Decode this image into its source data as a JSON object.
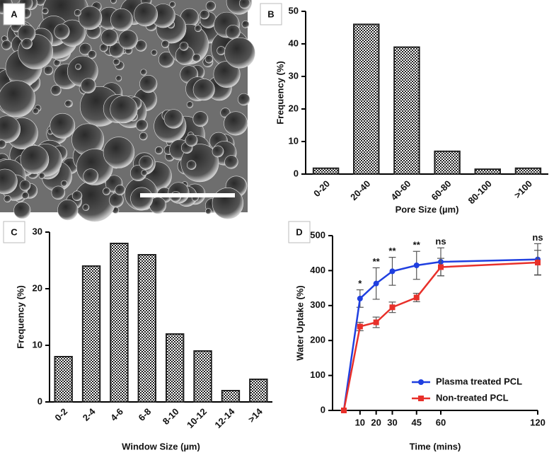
{
  "image_panel": {
    "label": "A"
  },
  "chart_data": [
    {
      "type": "bar",
      "panel_label": "B",
      "x_label": "Pore Size (µm)",
      "y_label": "Frequency (%)",
      "categories": [
        "0-20",
        "20-40",
        "40-60",
        "60-80",
        "80-100",
        ">100"
      ],
      "values": [
        1.8,
        46,
        39,
        7,
        1.5,
        1.8
      ],
      "color": "#222222",
      "ylim": [
        0,
        50
      ],
      "yticks": [
        0,
        10,
        20,
        30,
        40,
        50
      ]
    },
    {
      "type": "bar",
      "panel_label": "C",
      "x_label": "Window Size (µm)",
      "y_label": "Frequency (%)",
      "categories": [
        "0-2",
        "2-4",
        "4-6",
        "6-8",
        "8-10",
        "10-12",
        "12-14",
        ">14"
      ],
      "values": [
        8,
        24,
        28,
        26,
        12,
        9,
        2,
        4
      ],
      "color": "#222222",
      "ylim": [
        0,
        30
      ],
      "yticks": [
        0,
        10,
        20,
        30
      ]
    },
    {
      "type": "line",
      "panel_label": "D",
      "x_label": "Time (mins)",
      "y_label": "Water Uptake (%)",
      "x": [
        0,
        10,
        20,
        30,
        45,
        60,
        120
      ],
      "series": [
        {
          "name": "Plasma treated PCL",
          "color": "#1f3fe0",
          "marker": "circle",
          "values": [
            0,
            320,
            363,
            398,
            415,
            425,
            432
          ],
          "errors": [
            0,
            25,
            45,
            40,
            40,
            40,
            45
          ]
        },
        {
          "name": "Non-treated PCL",
          "color": "#e8302a",
          "marker": "square",
          "values": [
            0,
            240,
            252,
            295,
            323,
            410,
            423
          ],
          "errors": [
            0,
            12,
            15,
            15,
            12,
            25,
            35
          ]
        }
      ],
      "annotations": [
        {
          "x": 10,
          "text": "*"
        },
        {
          "x": 20,
          "text": "**"
        },
        {
          "x": 30,
          "text": "**"
        },
        {
          "x": 45,
          "text": "**"
        },
        {
          "x": 60,
          "text": "ns"
        },
        {
          "x": 120,
          "text": "ns"
        }
      ],
      "xlim": [
        -7,
        120
      ],
      "xticks": [
        10,
        20,
        30,
        45,
        60,
        120
      ],
      "ylim": [
        0,
        500
      ],
      "yticks": [
        0,
        100,
        200,
        300,
        400,
        500
      ],
      "legend": "lower-right"
    }
  ]
}
